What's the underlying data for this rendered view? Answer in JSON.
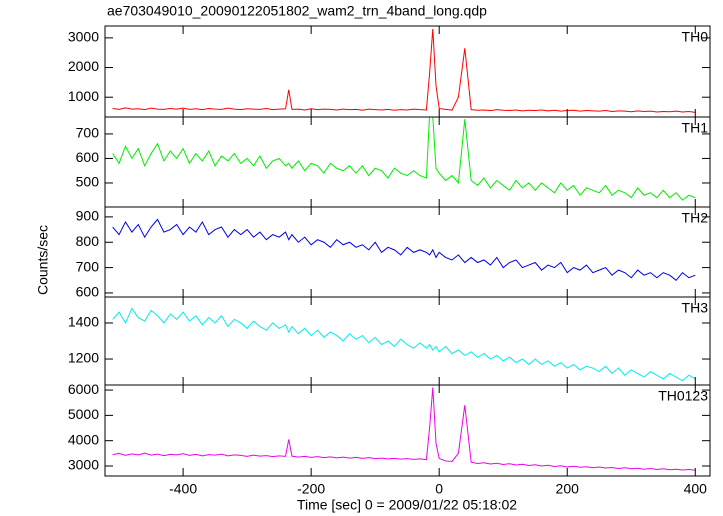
{
  "chart_data": [
    {
      "type": "line",
      "title": "ae703049010_20090122051802_wam2_trn_4band_long.qdp",
      "label": "TH0",
      "color": "#ff0000",
      "x": [
        -510,
        -500,
        -490,
        -480,
        -470,
        -460,
        -450,
        -440,
        -430,
        -420,
        -410,
        -400,
        -390,
        -380,
        -370,
        -360,
        -350,
        -340,
        -330,
        -320,
        -310,
        -300,
        -290,
        -280,
        -270,
        -260,
        -250,
        -240,
        -235,
        -230,
        -220,
        -210,
        -200,
        -190,
        -180,
        -170,
        -160,
        -150,
        -140,
        -130,
        -120,
        -110,
        -100,
        -90,
        -80,
        -70,
        -60,
        -50,
        -40,
        -30,
        -20,
        -15,
        -10,
        -5,
        0,
        10,
        20,
        30,
        40,
        50,
        60,
        70,
        80,
        90,
        100,
        110,
        120,
        130,
        140,
        150,
        160,
        170,
        180,
        190,
        200,
        210,
        220,
        230,
        240,
        250,
        260,
        270,
        280,
        290,
        300,
        310,
        320,
        330,
        340,
        350,
        360,
        370,
        380,
        390,
        400
      ],
      "values": [
        620,
        590,
        640,
        600,
        610,
        580,
        630,
        600,
        590,
        620,
        600,
        630,
        590,
        610,
        580,
        620,
        600,
        590,
        630,
        600,
        580,
        610,
        600,
        590,
        620,
        580,
        600,
        610,
        1250,
        590,
        600,
        570,
        610,
        580,
        600,
        590,
        570,
        600,
        580,
        590,
        560,
        600,
        580,
        570,
        590,
        560,
        580,
        570,
        600,
        580,
        570,
        1800,
        3300,
        1400,
        620,
        590,
        560,
        1000,
        2650,
        580,
        560,
        570,
        550,
        580,
        560,
        550,
        570,
        540,
        560,
        550,
        570,
        540,
        560,
        530,
        550,
        560,
        530,
        550,
        540,
        530,
        550,
        520,
        540,
        530,
        510,
        540,
        520,
        530,
        500,
        520,
        510,
        530,
        500,
        520,
        490
      ],
      "xlim": [
        -522,
        423
      ],
      "ylim": [
        333,
        3400
      ],
      "yticks": [
        1000,
        2000,
        3000
      ]
    },
    {
      "type": "line",
      "label": "TH1",
      "color": "#00ee00",
      "x": [
        -510,
        -500,
        -490,
        -480,
        -470,
        -460,
        -450,
        -440,
        -430,
        -420,
        -410,
        -400,
        -390,
        -380,
        -370,
        -360,
        -350,
        -340,
        -330,
        -320,
        -310,
        -300,
        -290,
        -280,
        -270,
        -260,
        -250,
        -240,
        -235,
        -230,
        -220,
        -210,
        -200,
        -190,
        -180,
        -170,
        -160,
        -150,
        -140,
        -130,
        -120,
        -110,
        -100,
        -90,
        -80,
        -70,
        -60,
        -50,
        -40,
        -30,
        -20,
        -15,
        -10,
        -5,
        0,
        10,
        20,
        30,
        40,
        50,
        60,
        70,
        80,
        90,
        100,
        110,
        120,
        130,
        140,
        150,
        160,
        170,
        180,
        190,
        200,
        210,
        220,
        230,
        240,
        250,
        260,
        270,
        280,
        290,
        300,
        310,
        320,
        330,
        340,
        350,
        360,
        370,
        380,
        390,
        400
      ],
      "values": [
        620,
        580,
        650,
        600,
        640,
        570,
        620,
        660,
        590,
        630,
        600,
        640,
        580,
        620,
        590,
        630,
        570,
        610,
        590,
        620,
        580,
        600,
        570,
        610,
        560,
        590,
        600,
        570,
        580,
        560,
        590,
        550,
        580,
        570,
        540,
        580,
        560,
        550,
        570,
        540,
        570,
        530,
        560,
        550,
        520,
        560,
        540,
        530,
        550,
        530,
        520,
        780,
        770,
        560,
        540,
        510,
        530,
        500,
        760,
        510,
        490,
        520,
        480,
        510,
        490,
        470,
        510,
        480,
        500,
        470,
        500,
        480,
        460,
        500,
        470,
        490,
        450,
        480,
        470,
        460,
        490,
        450,
        470,
        460,
        440,
        480,
        450,
        460,
        440,
        470,
        440,
        460,
        430,
        450,
        440
      ],
      "xlim": [
        -522,
        423
      ],
      "ylim": [
        402,
        769
      ],
      "yticks": [
        500,
        600,
        700
      ]
    },
    {
      "type": "line",
      "label": "TH2",
      "color": "#0000ee",
      "y_label": "Counts/sec",
      "x": [
        -510,
        -500,
        -490,
        -480,
        -470,
        -460,
        -450,
        -440,
        -430,
        -420,
        -410,
        -400,
        -390,
        -380,
        -370,
        -360,
        -350,
        -340,
        -330,
        -320,
        -310,
        -300,
        -290,
        -280,
        -270,
        -260,
        -250,
        -240,
        -235,
        -230,
        -220,
        -210,
        -200,
        -190,
        -180,
        -170,
        -160,
        -150,
        -140,
        -130,
        -120,
        -110,
        -100,
        -90,
        -80,
        -70,
        -60,
        -50,
        -40,
        -30,
        -20,
        -15,
        -10,
        -5,
        0,
        10,
        20,
        30,
        40,
        50,
        60,
        70,
        80,
        90,
        100,
        110,
        120,
        130,
        140,
        150,
        160,
        170,
        180,
        190,
        200,
        210,
        220,
        230,
        240,
        250,
        260,
        270,
        280,
        290,
        300,
        310,
        320,
        330,
        340,
        350,
        360,
        370,
        380,
        390,
        400
      ],
      "values": [
        860,
        830,
        880,
        840,
        870,
        820,
        860,
        890,
        840,
        850,
        870,
        830,
        860,
        840,
        880,
        830,
        850,
        860,
        820,
        850,
        830,
        850,
        820,
        840,
        810,
        830,
        820,
        840,
        810,
        830,
        800,
        820,
        790,
        810,
        800,
        780,
        810,
        790,
        800,
        780,
        790,
        770,
        800,
        760,
        780,
        770,
        750,
        780,
        760,
        770,
        760,
        750,
        770,
        740,
        760,
        740,
        730,
        750,
        720,
        740,
        720,
        730,
        710,
        740,
        700,
        720,
        730,
        700,
        710,
        720,
        690,
        710,
        700,
        720,
        680,
        700,
        690,
        710,
        680,
        690,
        700,
        670,
        690,
        680,
        660,
        690,
        670,
        680,
        660,
        680,
        670,
        650,
        680,
        660,
        670
      ],
      "xlim": [
        -522,
        423
      ],
      "ylim": [
        584,
        939
      ],
      "yticks": [
        600,
        700,
        800,
        900
      ]
    },
    {
      "type": "line",
      "label": "TH3",
      "color": "#00eeee",
      "x": [
        -510,
        -500,
        -490,
        -480,
        -470,
        -460,
        -450,
        -440,
        -430,
        -420,
        -410,
        -400,
        -390,
        -380,
        -370,
        -360,
        -350,
        -340,
        -330,
        -320,
        -310,
        -300,
        -290,
        -280,
        -270,
        -260,
        -250,
        -240,
        -235,
        -230,
        -220,
        -210,
        -200,
        -190,
        -180,
        -170,
        -160,
        -150,
        -140,
        -130,
        -120,
        -110,
        -100,
        -90,
        -80,
        -70,
        -60,
        -50,
        -40,
        -30,
        -20,
        -15,
        -10,
        -5,
        0,
        10,
        20,
        30,
        40,
        50,
        60,
        70,
        80,
        90,
        100,
        110,
        120,
        130,
        140,
        150,
        160,
        170,
        180,
        190,
        200,
        210,
        220,
        230,
        240,
        250,
        260,
        270,
        280,
        290,
        300,
        310,
        320,
        330,
        340,
        350,
        360,
        370,
        380,
        390,
        400
      ],
      "values": [
        1420,
        1460,
        1400,
        1480,
        1430,
        1410,
        1470,
        1440,
        1400,
        1450,
        1420,
        1460,
        1410,
        1440,
        1390,
        1430,
        1400,
        1440,
        1380,
        1420,
        1400,
        1370,
        1410,
        1380,
        1360,
        1400,
        1370,
        1390,
        1350,
        1380,
        1340,
        1370,
        1330,
        1360,
        1320,
        1350,
        1330,
        1300,
        1340,
        1310,
        1330,
        1290,
        1320,
        1280,
        1300,
        1270,
        1310,
        1280,
        1260,
        1290,
        1260,
        1280,
        1250,
        1270,
        1240,
        1270,
        1230,
        1250,
        1220,
        1240,
        1210,
        1230,
        1200,
        1220,
        1190,
        1210,
        1180,
        1200,
        1170,
        1200,
        1170,
        1190,
        1160,
        1180,
        1150,
        1170,
        1140,
        1160,
        1150,
        1130,
        1160,
        1120,
        1150,
        1110,
        1140,
        1120,
        1100,
        1130,
        1110,
        1090,
        1120,
        1100,
        1080,
        1110,
        1090
      ],
      "xlim": [
        -522,
        423
      ],
      "ylim": [
        1056,
        1544
      ],
      "yticks": [
        1200,
        1400
      ]
    },
    {
      "type": "line",
      "label": "TH0123",
      "color": "#ee00ee",
      "x_label": "Time [sec] 0 = 2009/01/22 05:18:02",
      "x": [
        -510,
        -500,
        -490,
        -480,
        -470,
        -460,
        -450,
        -440,
        -430,
        -420,
        -410,
        -400,
        -390,
        -380,
        -370,
        -360,
        -350,
        -340,
        -330,
        -320,
        -310,
        -300,
        -290,
        -280,
        -270,
        -260,
        -250,
        -240,
        -235,
        -230,
        -220,
        -210,
        -200,
        -190,
        -180,
        -170,
        -160,
        -150,
        -140,
        -130,
        -120,
        -110,
        -100,
        -90,
        -80,
        -70,
        -60,
        -50,
        -40,
        -30,
        -20,
        -15,
        -10,
        -5,
        0,
        10,
        20,
        30,
        40,
        50,
        60,
        70,
        80,
        90,
        100,
        110,
        120,
        130,
        140,
        150,
        160,
        170,
        180,
        190,
        200,
        210,
        220,
        230,
        240,
        250,
        260,
        270,
        280,
        290,
        300,
        310,
        320,
        330,
        340,
        350,
        360,
        370,
        380,
        390,
        400
      ],
      "values": [
        3450,
        3500,
        3420,
        3480,
        3440,
        3510,
        3430,
        3470,
        3410,
        3460,
        3440,
        3490,
        3420,
        3460,
        3400,
        3450,
        3430,
        3470,
        3400,
        3440,
        3420,
        3380,
        3430,
        3390,
        3410,
        3370,
        3400,
        3380,
        4050,
        3390,
        3350,
        3380,
        3340,
        3370,
        3330,
        3360,
        3320,
        3350,
        3310,
        3340,
        3300,
        3330,
        3290,
        3310,
        3280,
        3300,
        3270,
        3290,
        3260,
        3280,
        3250,
        4500,
        6100,
        3900,
        3300,
        3200,
        3180,
        3500,
        5400,
        3150,
        3100,
        3130,
        3080,
        3110,
        3060,
        3090,
        3040,
        3070,
        3020,
        3050,
        3000,
        3030,
        2980,
        3010,
        2960,
        2990,
        2950,
        2970,
        2930,
        2960,
        2920,
        2940,
        2900,
        2930,
        2890,
        2910,
        2870,
        2900,
        2860,
        2890,
        2850,
        2870,
        2840,
        2860,
        2830
      ],
      "xlim": [
        -522,
        423
      ],
      "ylim": [
        2605,
        6200
      ],
      "yticks": [
        3000,
        4000,
        5000,
        6000
      ],
      "xticks": [
        -400,
        -200,
        0,
        200,
        400
      ]
    }
  ]
}
